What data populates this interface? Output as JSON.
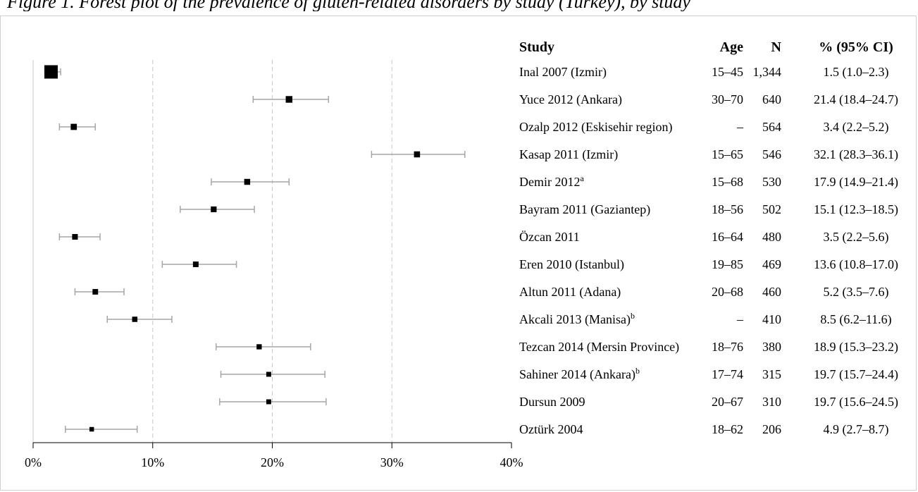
{
  "caption": "Figure 1. Forest plot of the prevalence of gluten-related disorders by study (Turkey), by study",
  "table_headers": {
    "study": "Study",
    "age": "Age",
    "n": "N",
    "ci": "% (95% CI)"
  },
  "chart_data": {
    "type": "forest",
    "x_axis": {
      "ticks": [
        0,
        10,
        20,
        30,
        40
      ],
      "tick_labels": [
        "0%",
        "10%",
        "20%",
        "30%",
        "40%"
      ],
      "range": [
        0,
        40
      ],
      "unit": "%",
      "gridlines": "dashed at 10, 20, 30"
    },
    "studies": [
      {
        "study": "Inal 2007 (Izmir)",
        "superscript": "",
        "age": "15–45",
        "n": "1,344",
        "ci_text": "1.5 (1.0–2.3)",
        "estimate": 1.5,
        "lower": 1.0,
        "upper": 2.3,
        "weight": 1344
      },
      {
        "study": "Yuce 2012 (Ankara)",
        "superscript": "",
        "age": "30–70",
        "n": "640",
        "ci_text": "21.4 (18.4–24.7)",
        "estimate": 21.4,
        "lower": 18.4,
        "upper": 24.7,
        "weight": 640
      },
      {
        "study": "Ozalp 2012 (Eskisehir region)",
        "superscript": "",
        "age": "–",
        "n": "564",
        "ci_text": "3.4 (2.2–5.2)",
        "estimate": 3.4,
        "lower": 2.2,
        "upper": 5.2,
        "weight": 564
      },
      {
        "study": "Kasap 2011 (Izmir)",
        "superscript": "",
        "age": "15–65",
        "n": "546",
        "ci_text": "32.1 (28.3–36.1)",
        "estimate": 32.1,
        "lower": 28.3,
        "upper": 36.1,
        "weight": 546
      },
      {
        "study": "Demir 2012",
        "superscript": "a",
        "age": "15–68",
        "n": "530",
        "ci_text": "17.9 (14.9–21.4)",
        "estimate": 17.9,
        "lower": 14.9,
        "upper": 21.4,
        "weight": 530
      },
      {
        "study": "Bayram 2011 (Gaziantep)",
        "superscript": "",
        "age": "18–56",
        "n": "502",
        "ci_text": "15.1 (12.3–18.5)",
        "estimate": 15.1,
        "lower": 12.3,
        "upper": 18.5,
        "weight": 502
      },
      {
        "study": "Özcan 2011",
        "superscript": "",
        "age": "16–64",
        "n": "480",
        "ci_text": "3.5 (2.2–5.6)",
        "estimate": 3.5,
        "lower": 2.2,
        "upper": 5.6,
        "weight": 480
      },
      {
        "study": "Eren 2010 (Istanbul)",
        "superscript": "",
        "age": "19–85",
        "n": "469",
        "ci_text": "13.6 (10.8–17.0)",
        "estimate": 13.6,
        "lower": 10.8,
        "upper": 17.0,
        "weight": 469
      },
      {
        "study": "Altun 2011 (Adana)",
        "superscript": "",
        "age": "20–68",
        "n": "460",
        "ci_text": "5.2 (3.5–7.6)",
        "estimate": 5.2,
        "lower": 3.5,
        "upper": 7.6,
        "weight": 460
      },
      {
        "study": "Akcali 2013 (Manisa)",
        "superscript": "b",
        "age": "–",
        "n": "410",
        "ci_text": "8.5 (6.2–11.6)",
        "estimate": 8.5,
        "lower": 6.2,
        "upper": 11.6,
        "weight": 410
      },
      {
        "study": "Tezcan 2014 (Mersin Province)",
        "superscript": "",
        "age": "18–76",
        "n": "380",
        "ci_text": "18.9 (15.3–23.2)",
        "estimate": 18.9,
        "lower": 15.3,
        "upper": 23.2,
        "weight": 380
      },
      {
        "study": "Sahiner 2014 (Ankara)",
        "superscript": "b",
        "age": "17–74",
        "n": "315",
        "ci_text": "19.7 (15.7–24.4)",
        "estimate": 19.7,
        "lower": 15.7,
        "upper": 24.4,
        "weight": 315
      },
      {
        "study": "Dursun 2009",
        "superscript": "",
        "age": "20–67",
        "n": "310",
        "ci_text": "19.7 (15.6–24.5)",
        "estimate": 19.7,
        "lower": 15.6,
        "upper": 24.5,
        "weight": 310
      },
      {
        "study": "Oztürk 2004",
        "superscript": "",
        "age": "18–62",
        "n": "206",
        "ci_text": "4.9 (2.7–8.7)",
        "estimate": 4.9,
        "lower": 2.7,
        "upper": 8.7,
        "weight": 206
      }
    ],
    "colors": {
      "marker": "#000000",
      "ci_line": "#a6a6a6",
      "gridline": "#c8c8c8",
      "axis": "#000000"
    }
  }
}
